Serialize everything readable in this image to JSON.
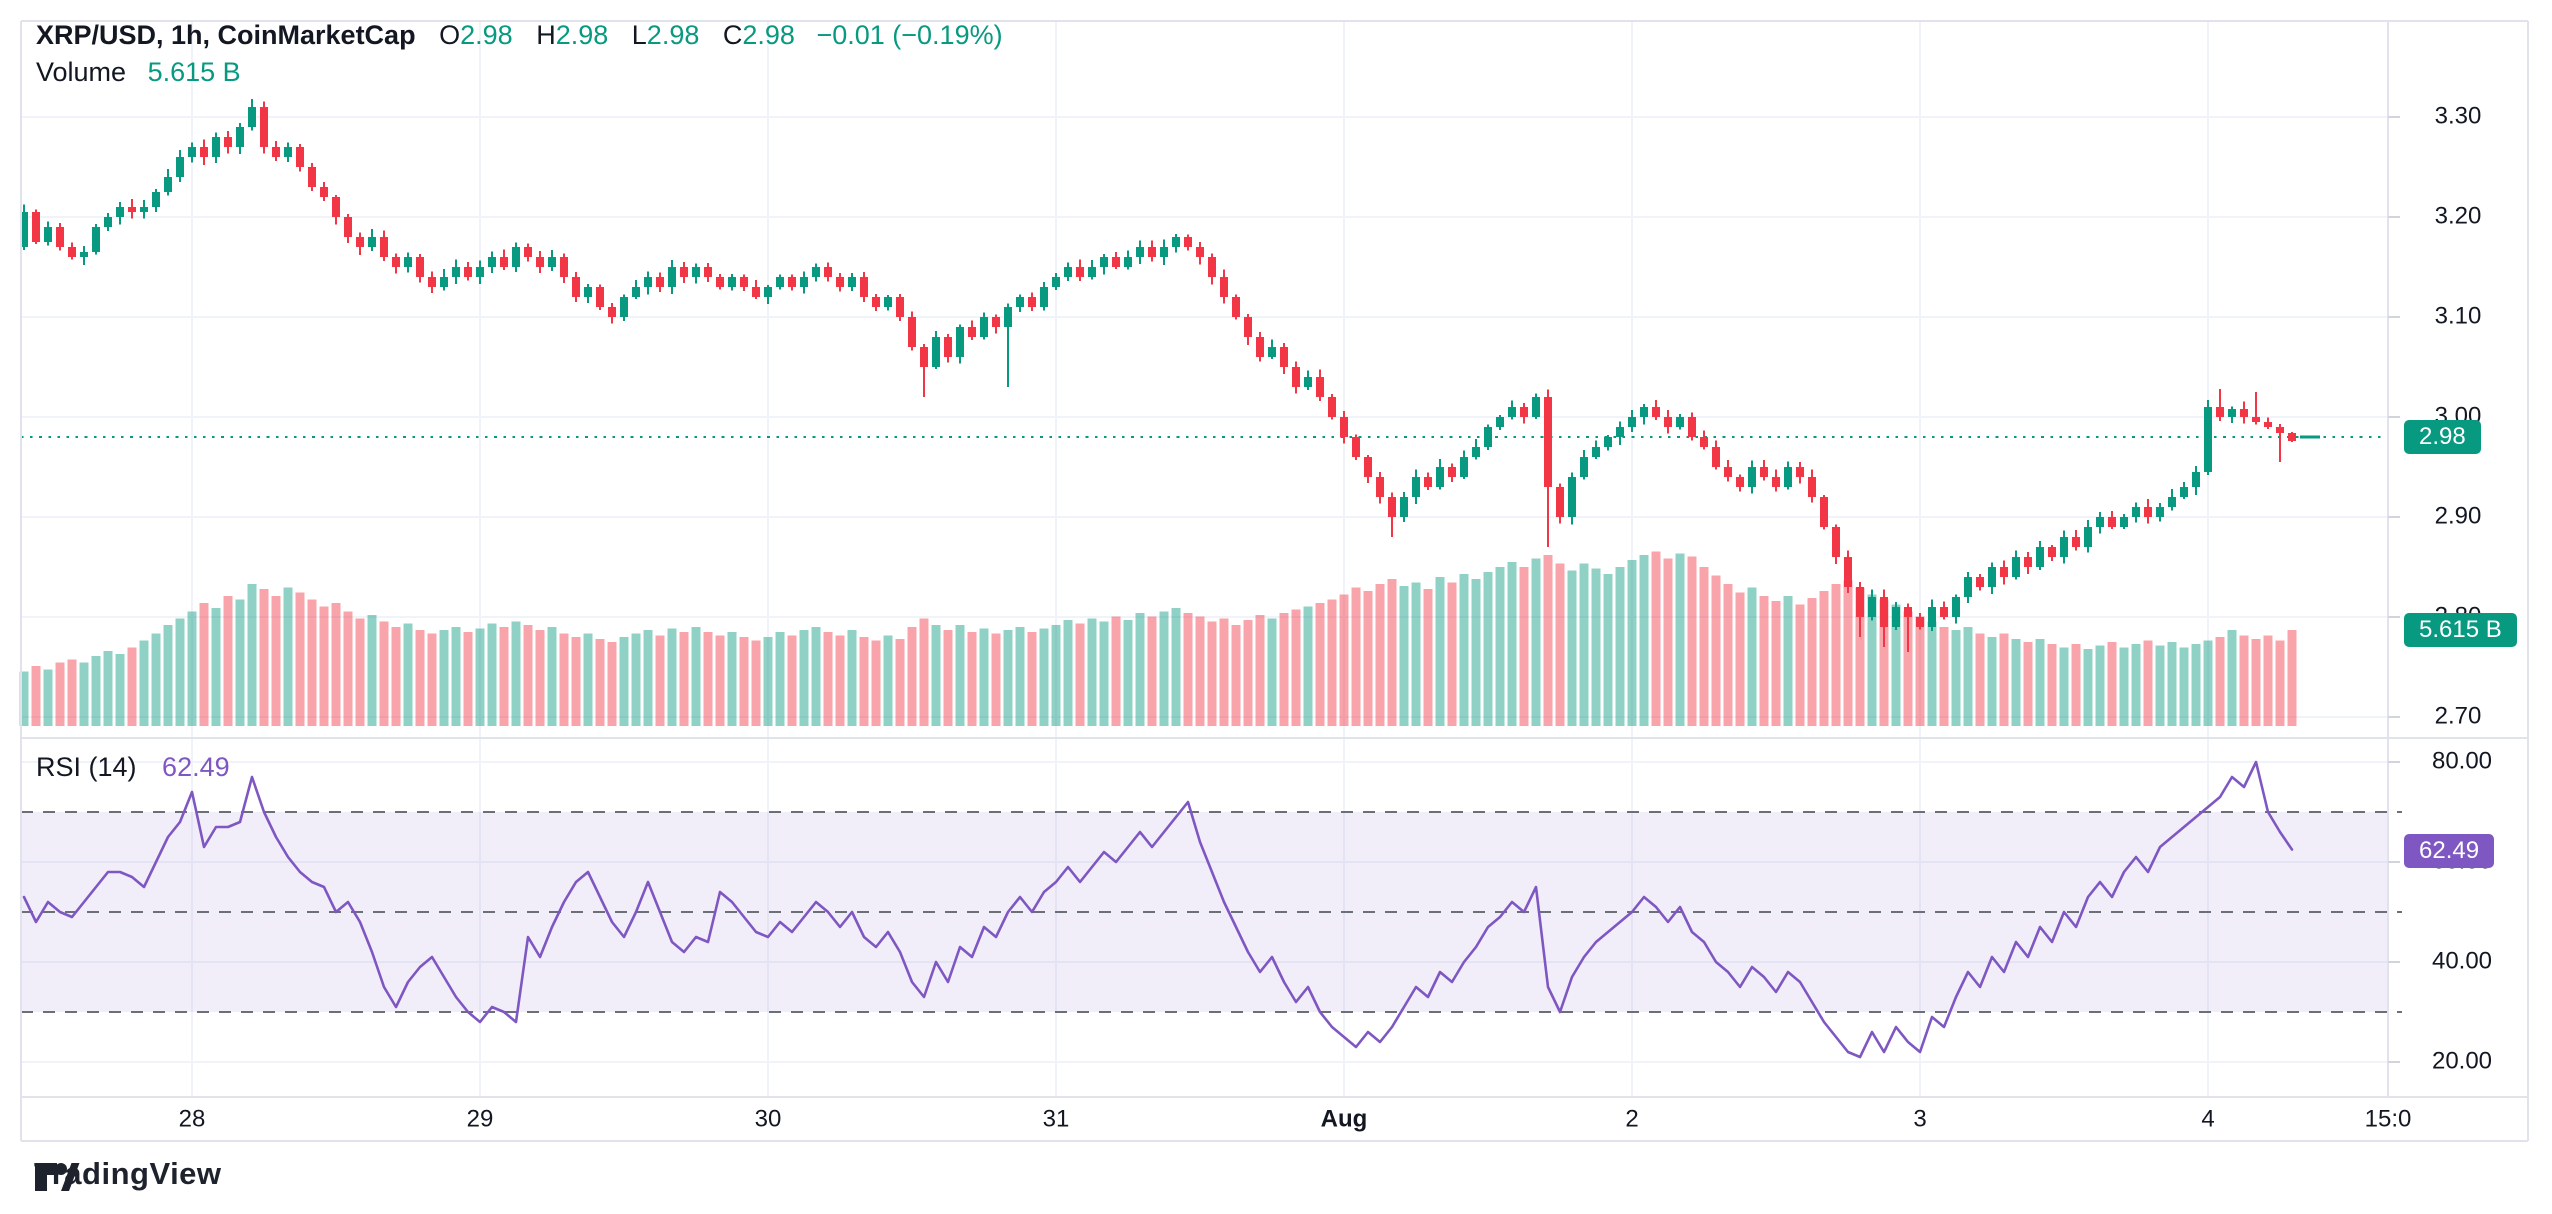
{
  "legend": {
    "title": "XRP/USD, 1h, CoinMarketCap",
    "o_label": "O",
    "o": "2.98",
    "h_label": "H",
    "h": "2.98",
    "l_label": "L",
    "l": "2.98",
    "c_label": "C",
    "c": "2.98",
    "change": "−0.01 (−0.19%)",
    "volume_label": "Volume",
    "volume_value": "5.615 B"
  },
  "rsi_legend": {
    "title": "RSI (14)",
    "value": "62.49"
  },
  "badges": {
    "price": "2.98",
    "volume": "5.615 B",
    "rsi": "62.49"
  },
  "footer": {
    "logo_text": "TradingView"
  },
  "colors": {
    "up": "#089981",
    "down": "#F23645",
    "vol_up": "rgba(8,153,129,0.45)",
    "vol_down": "rgba(242,54,69,0.45)",
    "rsi_line": "#7E57C2",
    "rsi_band": "rgba(126,87,194,0.10)",
    "dash": "#6B6F76",
    "grid": "#F0F3FA",
    "frame": "#E0E3EB",
    "text": "#131722",
    "tick": "#D1D4DC"
  },
  "chart_data": {
    "type": "candlestick",
    "title": "XRP/USD, 1h, CoinMarketCap",
    "symbol": "XRP/USD",
    "interval": "1h",
    "source": "CoinMarketCap",
    "legend_position": "top-left",
    "grid": true,
    "panes": [
      "price+volume",
      "rsi"
    ],
    "price_axis_ticks": [
      "3.30",
      "3.20",
      "3.10",
      "3.00",
      "2.90",
      "2.80",
      "2.70"
    ],
    "rsi_axis_ticks": [
      "80.00",
      "60.00",
      "40.00",
      "20.00"
    ],
    "time_ticks": [
      {
        "label": "28",
        "index": 14,
        "bold": false
      },
      {
        "label": "29",
        "index": 38,
        "bold": false
      },
      {
        "label": "30",
        "index": 62,
        "bold": false
      },
      {
        "label": "31",
        "index": 86,
        "bold": false
      },
      {
        "label": "Aug",
        "index": 110,
        "bold": true
      },
      {
        "label": "2",
        "index": 134,
        "bold": false
      },
      {
        "label": "3",
        "index": 158,
        "bold": false
      },
      {
        "label": "4",
        "index": 182,
        "bold": false
      },
      {
        "label": "15:0",
        "index": 197,
        "bold": false
      }
    ],
    "price_range_visible": [
      2.66,
      3.4
    ],
    "rsi_range_visible": [
      13,
      85
    ],
    "last_price": 2.98,
    "last_volume_b": 5.615,
    "rsi_current": 62.49,
    "rsi_levels": {
      "upper": 70,
      "middle": 50,
      "lower": 30
    },
    "open_first": 3.17,
    "closes": [
      3.205,
      3.175,
      3.19,
      3.17,
      3.16,
      3.165,
      3.19,
      3.2,
      3.21,
      3.205,
      3.21,
      3.225,
      3.24,
      3.26,
      3.27,
      3.26,
      3.28,
      3.27,
      3.29,
      3.31,
      3.27,
      3.26,
      3.27,
      3.25,
      3.23,
      3.22,
      3.2,
      3.18,
      3.17,
      3.18,
      3.16,
      3.15,
      3.16,
      3.14,
      3.13,
      3.14,
      3.15,
      3.14,
      3.15,
      3.16,
      3.15,
      3.17,
      3.16,
      3.15,
      3.16,
      3.14,
      3.12,
      3.13,
      3.11,
      3.1,
      3.12,
      3.13,
      3.14,
      3.13,
      3.15,
      3.14,
      3.15,
      3.14,
      3.13,
      3.14,
      3.13,
      3.12,
      3.13,
      3.14,
      3.13,
      3.14,
      3.15,
      3.14,
      3.13,
      3.14,
      3.12,
      3.11,
      3.12,
      3.1,
      3.07,
      3.05,
      3.08,
      3.06,
      3.09,
      3.08,
      3.1,
      3.09,
      3.11,
      3.12,
      3.11,
      3.13,
      3.14,
      3.15,
      3.14,
      3.15,
      3.16,
      3.15,
      3.16,
      3.17,
      3.16,
      3.17,
      3.18,
      3.17,
      3.16,
      3.14,
      3.12,
      3.1,
      3.08,
      3.06,
      3.07,
      3.05,
      3.03,
      3.04,
      3.02,
      3.0,
      2.98,
      2.96,
      2.94,
      2.92,
      2.9,
      2.92,
      2.94,
      2.93,
      2.95,
      2.94,
      2.96,
      2.97,
      2.99,
      3.0,
      3.01,
      3.0,
      3.02,
      2.93,
      2.9,
      2.94,
      2.96,
      2.97,
      2.98,
      2.99,
      3.0,
      3.01,
      3.0,
      2.99,
      3.0,
      2.98,
      2.97,
      2.95,
      2.94,
      2.93,
      2.95,
      2.94,
      2.93,
      2.95,
      2.94,
      2.92,
      2.89,
      2.86,
      2.83,
      2.8,
      2.82,
      2.79,
      2.81,
      2.8,
      2.79,
      2.81,
      2.8,
      2.82,
      2.84,
      2.83,
      2.85,
      2.84,
      2.86,
      2.85,
      2.87,
      2.86,
      2.88,
      2.87,
      2.89,
      2.9,
      2.89,
      2.9,
      2.91,
      2.9,
      2.91,
      2.92,
      2.93,
      2.945,
      3.01,
      3.0,
      3.008,
      3.0,
      2.995,
      2.99,
      2.984,
      2.976
    ],
    "volumes_b": [
      3.2,
      3.5,
      3.3,
      3.7,
      3.9,
      3.7,
      4.1,
      4.4,
      4.2,
      4.6,
      5.0,
      5.4,
      5.9,
      6.3,
      6.7,
      7.2,
      6.9,
      7.6,
      7.4,
      8.3,
      8.0,
      7.6,
      8.1,
      7.8,
      7.4,
      7.0,
      7.2,
      6.7,
      6.3,
      6.5,
      6.1,
      5.8,
      6.0,
      5.6,
      5.4,
      5.6,
      5.8,
      5.5,
      5.7,
      6.0,
      5.8,
      6.1,
      5.9,
      5.6,
      5.8,
      5.4,
      5.2,
      5.4,
      5.1,
      4.9,
      5.2,
      5.4,
      5.6,
      5.3,
      5.7,
      5.5,
      5.8,
      5.5,
      5.3,
      5.5,
      5.2,
      5.0,
      5.2,
      5.5,
      5.3,
      5.6,
      5.8,
      5.5,
      5.3,
      5.6,
      5.2,
      5.0,
      5.3,
      5.1,
      5.8,
      6.3,
      5.9,
      5.6,
      5.9,
      5.5,
      5.7,
      5.4,
      5.6,
      5.8,
      5.5,
      5.7,
      5.9,
      6.2,
      6.0,
      6.3,
      6.1,
      6.4,
      6.2,
      6.6,
      6.4,
      6.7,
      6.9,
      6.6,
      6.4,
      6.1,
      6.3,
      5.9,
      6.2,
      6.5,
      6.3,
      6.6,
      6.8,
      7.0,
      7.2,
      7.4,
      7.7,
      8.1,
      7.9,
      8.3,
      8.6,
      8.2,
      8.4,
      8.0,
      8.7,
      8.4,
      8.9,
      8.6,
      9.0,
      9.3,
      9.6,
      9.3,
      9.8,
      10.0,
      9.5,
      9.1,
      9.5,
      9.2,
      8.9,
      9.3,
      9.7,
      10.0,
      10.2,
      9.8,
      10.1,
      9.9,
      9.3,
      8.8,
      8.3,
      7.8,
      8.1,
      7.6,
      7.3,
      7.6,
      7.1,
      7.5,
      7.9,
      8.3,
      8.5,
      8.1,
      7.7,
      7.4,
      7.1,
      6.7,
      6.4,
      6.1,
      5.8,
      5.6,
      5.8,
      5.4,
      5.2,
      5.4,
      5.1,
      4.9,
      5.1,
      4.8,
      4.6,
      4.8,
      4.5,
      4.7,
      4.9,
      4.6,
      4.8,
      5.0,
      4.7,
      4.9,
      4.6,
      4.8,
      5.0,
      5.2,
      5.6,
      5.3,
      5.1,
      5.3,
      5.0,
      5.615
    ],
    "rsi": [
      53,
      48,
      52,
      50,
      49,
      52,
      55,
      58,
      58,
      57,
      55,
      60,
      65,
      68,
      74,
      63,
      67,
      67,
      68,
      77,
      70,
      65,
      61,
      58,
      56,
      55,
      50,
      52,
      48,
      42,
      35,
      31,
      36,
      39,
      41,
      37,
      33,
      30,
      28,
      31,
      30,
      28,
      45,
      41,
      47,
      52,
      56,
      58,
      53,
      48,
      45,
      50,
      56,
      50,
      44,
      42,
      45,
      44,
      54,
      52,
      49,
      46,
      45,
      48,
      46,
      49,
      52,
      50,
      47,
      50,
      45,
      43,
      46,
      42,
      36,
      33,
      40,
      36,
      43,
      41,
      47,
      45,
      50,
      53,
      50,
      54,
      56,
      59,
      56,
      59,
      62,
      60,
      63,
      66,
      63,
      66,
      69,
      72,
      64,
      58,
      52,
      47,
      42,
      38,
      41,
      36,
      32,
      35,
      30,
      27,
      25,
      23,
      26,
      24,
      27,
      31,
      35,
      33,
      38,
      36,
      40,
      43,
      47,
      49,
      52,
      50,
      55,
      35,
      30,
      37,
      41,
      44,
      46,
      48,
      50,
      53,
      51,
      48,
      51,
      46,
      44,
      40,
      38,
      35,
      39,
      37,
      34,
      38,
      36,
      32,
      28,
      25,
      22,
      21,
      26,
      22,
      27,
      24,
      22,
      29,
      27,
      33,
      38,
      35,
      41,
      38,
      44,
      41,
      47,
      44,
      50,
      47,
      53,
      56,
      53,
      58,
      61,
      58,
      63,
      65,
      67,
      69,
      71,
      73,
      77,
      75,
      80,
      70,
      66,
      62.49
    ],
    "wick_overrides": {
      "19": [
        3.318,
        null
      ],
      "75": [
        null,
        3.02
      ],
      "82": [
        null,
        3.03
      ],
      "114": [
        null,
        2.88
      ],
      "127": [
        null,
        2.87
      ],
      "153": [
        null,
        2.78
      ],
      "155": [
        null,
        2.77
      ],
      "157": [
        null,
        2.765
      ],
      "183": [
        3.028,
        null
      ],
      "186": [
        3.025,
        null
      ],
      "188": [
        null,
        2.955
      ],
      "189": [
        2.985,
        2.975
      ]
    }
  }
}
